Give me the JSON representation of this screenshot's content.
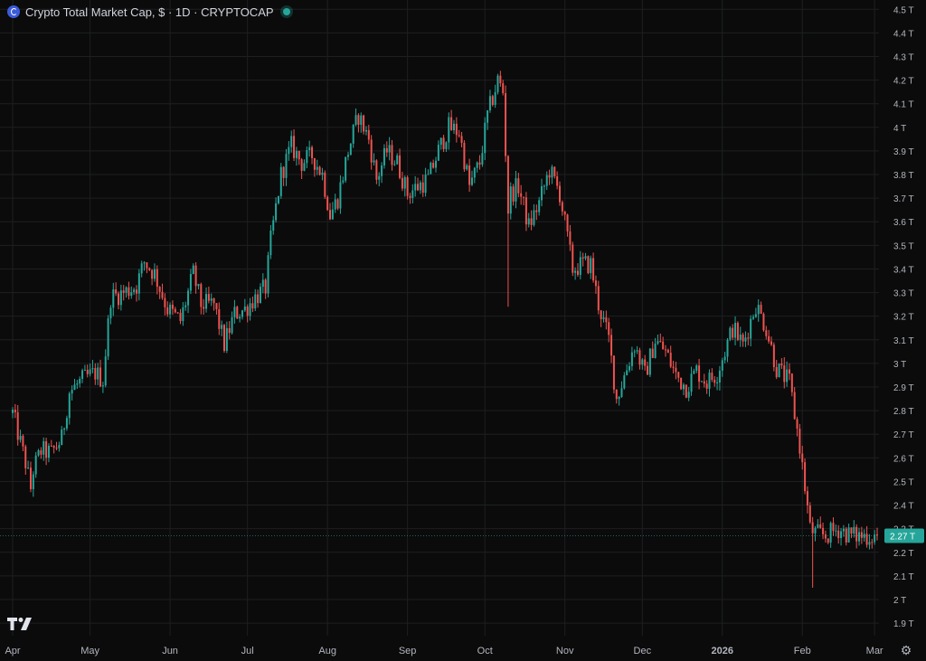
{
  "header": {
    "title": "Crypto Total Market Cap, $ · 1D · CRYPTOCAP"
  },
  "colors": {
    "up": "#26a69a",
    "down": "#ef5350",
    "background": "#0b0b0b",
    "grid": "#1e1f22",
    "axis_text": "#b2b5be",
    "price_label_bg": "#26a69a"
  },
  "icons": {
    "symbol": "crypto-symbol-icon",
    "status": "market-status-dot-icon",
    "logo": "tradingview-logo-icon",
    "settings": "gear-icon"
  },
  "chart_data": {
    "type": "candlestick",
    "title": "Crypto Total Market Cap, $ · 1D · CRYPTOCAP",
    "y_unit": "T",
    "ylim": [
      1.9,
      4.5
    ],
    "y_ticks": [
      "1.9 T",
      "2 T",
      "2.1 T",
      "2.2 T",
      "2.3 T",
      "2.4 T",
      "2.5 T",
      "2.6 T",
      "2.7 T",
      "2.8 T",
      "2.9 T",
      "3 T",
      "3.1 T",
      "3.2 T",
      "3.3 T",
      "3.4 T",
      "3.5 T",
      "3.6 T",
      "3.7 T",
      "3.8 T",
      "3.9 T",
      "4 T",
      "4.1 T",
      "4.2 T",
      "4.3 T",
      "4.4 T",
      "4.5 T"
    ],
    "x_ticks": [
      "Apr",
      "May",
      "Jun",
      "Jul",
      "Aug",
      "Sep",
      "Oct",
      "Nov",
      "Dec",
      "2026",
      "Feb",
      "Mar"
    ],
    "x_range": [
      "2025-04-01",
      "2026-03-02"
    ],
    "last_price_label": "2.27 T",
    "last_price": 2.27,
    "grid": true,
    "anchors": [
      [
        "2025-04-01",
        2.79
      ],
      [
        "2025-04-06",
        2.58
      ],
      [
        "2025-04-08",
        2.47
      ],
      [
        "2025-04-09",
        2.55
      ],
      [
        "2025-04-12",
        2.63
      ],
      [
        "2025-04-16",
        2.62
      ],
      [
        "2025-04-20",
        2.68
      ],
      [
        "2025-04-23",
        2.88
      ],
      [
        "2025-04-28",
        2.93
      ],
      [
        "2025-05-03",
        2.96
      ],
      [
        "2025-05-06",
        2.93
      ],
      [
        "2025-05-09",
        3.28
      ],
      [
        "2025-05-14",
        3.3
      ],
      [
        "2025-05-19",
        3.33
      ],
      [
        "2025-05-22",
        3.43
      ],
      [
        "2025-05-26",
        3.38
      ],
      [
        "2025-05-31",
        3.23
      ],
      [
        "2025-06-05",
        3.18
      ],
      [
        "2025-06-10",
        3.38
      ],
      [
        "2025-06-13",
        3.25
      ],
      [
        "2025-06-18",
        3.25
      ],
      [
        "2025-06-22",
        3.08
      ],
      [
        "2025-06-26",
        3.21
      ],
      [
        "2025-06-30",
        3.23
      ],
      [
        "2025-07-04",
        3.28
      ],
      [
        "2025-07-08",
        3.32
      ],
      [
        "2025-07-10",
        3.52
      ],
      [
        "2025-07-14",
        3.8
      ],
      [
        "2025-07-18",
        3.92
      ],
      [
        "2025-07-22",
        3.85
      ],
      [
        "2025-07-26",
        3.88
      ],
      [
        "2025-07-30",
        3.8
      ],
      [
        "2025-08-02",
        3.63
      ],
      [
        "2025-08-05",
        3.7
      ],
      [
        "2025-08-09",
        3.9
      ],
      [
        "2025-08-13",
        4.05
      ],
      [
        "2025-08-17",
        3.95
      ],
      [
        "2025-08-20",
        3.78
      ],
      [
        "2025-08-24",
        3.9
      ],
      [
        "2025-08-28",
        3.85
      ],
      [
        "2025-09-01",
        3.72
      ],
      [
        "2025-09-05",
        3.75
      ],
      [
        "2025-09-09",
        3.78
      ],
      [
        "2025-09-13",
        3.9
      ],
      [
        "2025-09-17",
        4.0
      ],
      [
        "2025-09-21",
        3.98
      ],
      [
        "2025-09-25",
        3.75
      ],
      [
        "2025-09-29",
        3.85
      ],
      [
        "2025-10-02",
        4.05
      ],
      [
        "2025-10-06",
        4.2
      ],
      [
        "2025-10-08",
        4.15
      ],
      [
        "2025-10-10",
        3.65
      ],
      [
        "2025-10-11",
        3.72
      ],
      [
        "2025-10-14",
        3.75
      ],
      [
        "2025-10-18",
        3.58
      ],
      [
        "2025-10-22",
        3.68
      ],
      [
        "2025-10-26",
        3.82
      ],
      [
        "2025-10-30",
        3.72
      ],
      [
        "2025-11-04",
        3.4
      ],
      [
        "2025-11-08",
        3.42
      ],
      [
        "2025-11-11",
        3.42
      ],
      [
        "2025-11-14",
        3.25
      ],
      [
        "2025-11-18",
        3.1
      ],
      [
        "2025-11-21",
        2.85
      ],
      [
        "2025-11-25",
        2.98
      ],
      [
        "2025-11-28",
        3.08
      ],
      [
        "2025-12-02",
        2.95
      ],
      [
        "2025-12-06",
        3.1
      ],
      [
        "2025-12-10",
        3.05
      ],
      [
        "2025-12-14",
        2.95
      ],
      [
        "2025-12-18",
        2.9
      ],
      [
        "2025-12-22",
        2.97
      ],
      [
        "2025-12-26",
        2.92
      ],
      [
        "2025-12-30",
        2.96
      ],
      [
        "2026-01-05",
        3.15
      ],
      [
        "2026-01-09",
        3.08
      ],
      [
        "2026-01-14",
        3.25
      ],
      [
        "2026-01-18",
        3.15
      ],
      [
        "2026-01-22",
        2.98
      ],
      [
        "2026-01-27",
        2.92
      ],
      [
        "2026-01-31",
        2.65
      ],
      [
        "2026-02-04",
        2.3
      ],
      [
        "2026-02-06",
        2.28
      ],
      [
        "2026-02-10",
        2.27
      ],
      [
        "2026-02-15",
        2.3
      ],
      [
        "2026-02-20",
        2.27
      ],
      [
        "2026-02-25",
        2.27
      ],
      [
        "2026-03-02",
        2.27
      ]
    ]
  }
}
